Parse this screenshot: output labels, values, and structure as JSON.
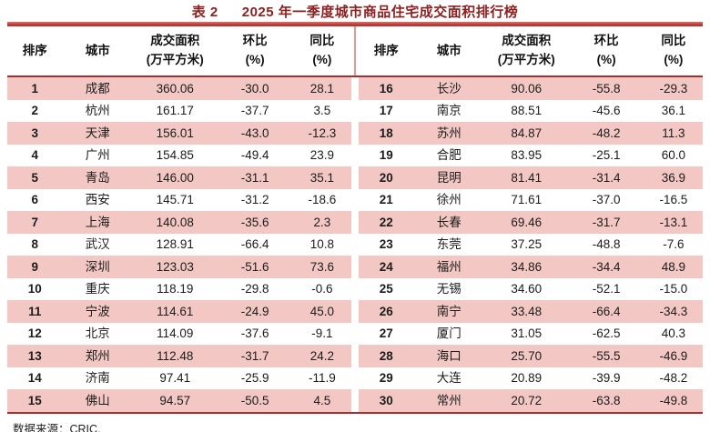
{
  "header": {
    "title_prefix": "表 2",
    "title_text": "2025 年一季度城市商品住宅成交面积排行榜"
  },
  "table": {
    "columns": [
      {
        "label": "排序",
        "sub": ""
      },
      {
        "label": "城市",
        "sub": ""
      },
      {
        "label": "成交面积",
        "sub": "(万平方米)"
      },
      {
        "label": "环比",
        "sub": "(%)"
      },
      {
        "label": "同比",
        "sub": "(%)"
      }
    ]
  },
  "chart_data": {
    "type": "table",
    "title": "表 2  2025 年一季度城市商品住宅成交面积排行榜",
    "columns": [
      "排序",
      "城市",
      "成交面积(万平方米)",
      "环比(%)",
      "同比(%)"
    ],
    "rows": [
      [
        "1",
        "成都",
        "360.06",
        "-30.0",
        "28.1"
      ],
      [
        "2",
        "杭州",
        "161.17",
        "-37.7",
        "3.5"
      ],
      [
        "3",
        "天津",
        "156.01",
        "-43.0",
        "-12.3"
      ],
      [
        "4",
        "广州",
        "154.85",
        "-49.4",
        "23.9"
      ],
      [
        "5",
        "青岛",
        "146.00",
        "-31.1",
        "35.1"
      ],
      [
        "6",
        "西安",
        "145.71",
        "-31.2",
        "-18.6"
      ],
      [
        "7",
        "上海",
        "140.08",
        "-35.6",
        "2.3"
      ],
      [
        "8",
        "武汉",
        "128.91",
        "-66.4",
        "10.8"
      ],
      [
        "9",
        "深圳",
        "123.03",
        "-51.6",
        "73.6"
      ],
      [
        "10",
        "重庆",
        "118.19",
        "-29.8",
        "-0.6"
      ],
      [
        "11",
        "宁波",
        "114.61",
        "-24.9",
        "45.0"
      ],
      [
        "12",
        "北京",
        "114.09",
        "-37.6",
        "-9.1"
      ],
      [
        "13",
        "郑州",
        "112.48",
        "-31.7",
        "24.2"
      ],
      [
        "14",
        "济南",
        "97.41",
        "-25.9",
        "-11.9"
      ],
      [
        "15",
        "佛山",
        "94.57",
        "-50.5",
        "4.5"
      ],
      [
        "16",
        "长沙",
        "90.06",
        "-55.8",
        "-29.3"
      ],
      [
        "17",
        "南京",
        "88.51",
        "-45.6",
        "36.1"
      ],
      [
        "18",
        "苏州",
        "84.87",
        "-48.2",
        "11.3"
      ],
      [
        "19",
        "合肥",
        "83.95",
        "-25.1",
        "60.0"
      ],
      [
        "20",
        "昆明",
        "81.41",
        "-31.4",
        "36.9"
      ],
      [
        "21",
        "徐州",
        "71.61",
        "-37.0",
        "-16.5"
      ],
      [
        "22",
        "长春",
        "69.46",
        "-31.7",
        "-13.1"
      ],
      [
        "23",
        "东莞",
        "37.25",
        "-48.8",
        "-7.6"
      ],
      [
        "24",
        "福州",
        "34.86",
        "-34.4",
        "48.9"
      ],
      [
        "25",
        "无锡",
        "34.60",
        "-52.1",
        "-15.0"
      ],
      [
        "26",
        "南宁",
        "33.48",
        "-66.4",
        "-34.3"
      ],
      [
        "27",
        "厦门",
        "31.05",
        "-62.5",
        "40.3"
      ],
      [
        "28",
        "海口",
        "25.70",
        "-55.5",
        "-46.9"
      ],
      [
        "29",
        "大连",
        "20.89",
        "-39.9",
        "-48.2"
      ],
      [
        "30",
        "常州",
        "20.72",
        "-63.8",
        "-49.8"
      ]
    ]
  },
  "footer": {
    "source_note": "数据来源：CRIC."
  },
  "colors": {
    "accent_rule": "#a8302c",
    "row_pink": "#f3c8c4",
    "title_red": "#8c1f1f",
    "text": "#1c1c1c"
  }
}
